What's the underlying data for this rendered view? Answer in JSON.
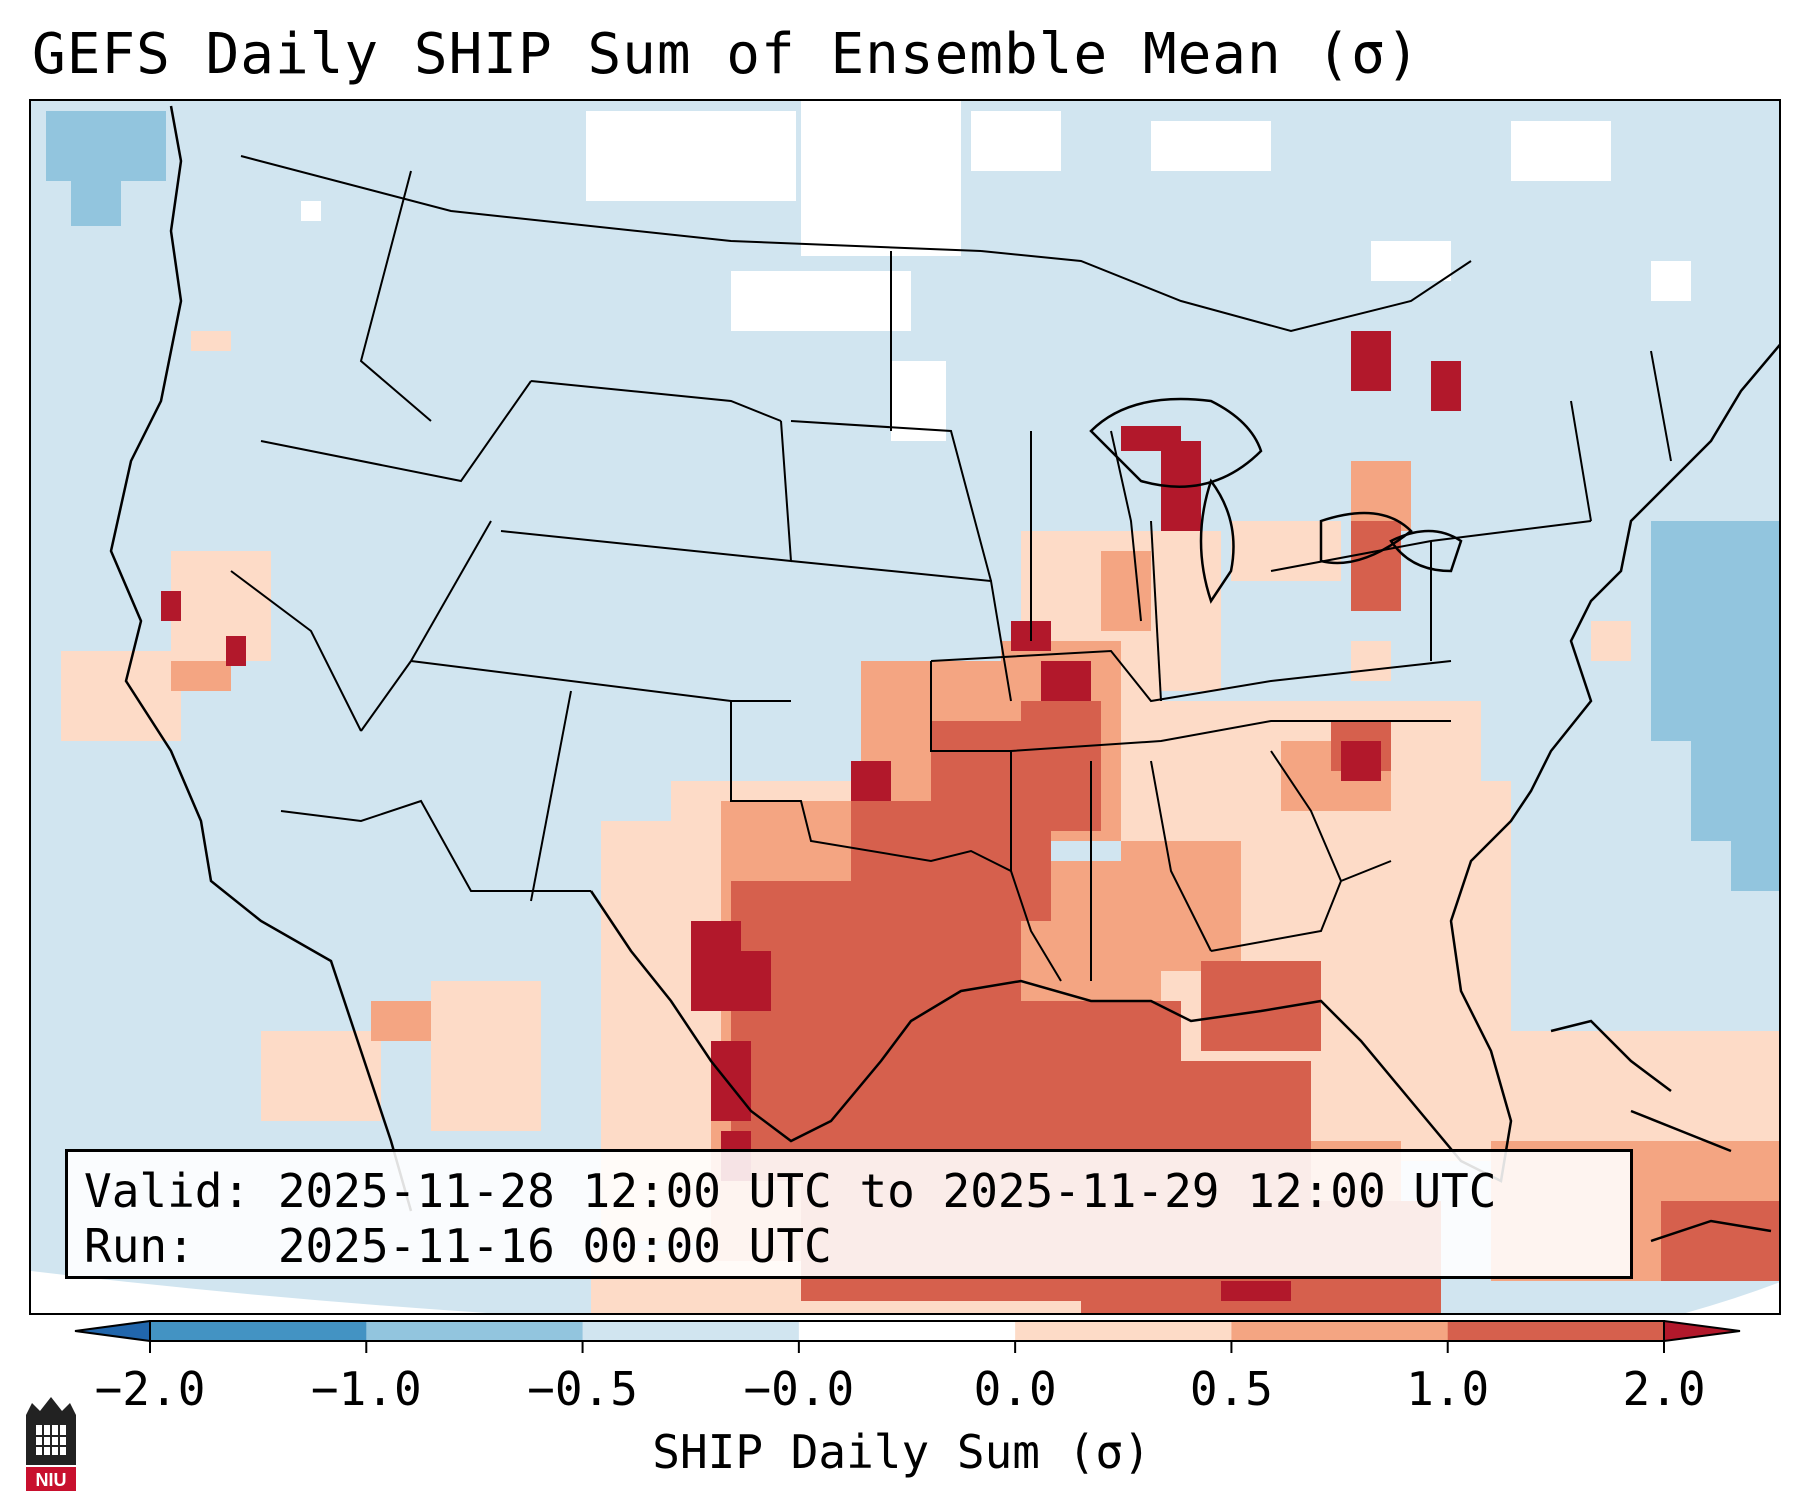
{
  "title": "GEFS Daily SHIP Sum of Ensemble Mean (σ)",
  "valid_text": "Valid: 2025-11-28 12:00 UTC to 2025-11-29 12:00 UTC",
  "run_text": "Run:   2025-11-16 00:00 UTC",
  "colorbar": {
    "label": "SHIP Daily Sum (σ)",
    "ticks": [
      "−2.0",
      "−1.0",
      "−0.5",
      "−0.0",
      "0.0",
      "0.5",
      "1.0",
      "2.0"
    ],
    "bins": [
      {
        "range": "< -2.0",
        "color": "#2166ac"
      },
      {
        "range": "-2.0 to -1.0",
        "color": "#4393c3"
      },
      {
        "range": "-1.0 to -0.5",
        "color": "#92c5de"
      },
      {
        "range": "-0.5 to -0.0",
        "color": "#d1e5f0"
      },
      {
        "range": "-0.0 to 0.0",
        "color": "#ffffff"
      },
      {
        "range": "0.0 to 0.5",
        "color": "#fddbc7"
      },
      {
        "range": "0.5 to 1.0",
        "color": "#f4a582"
      },
      {
        "range": "1.0 to 2.0",
        "color": "#d6604d"
      },
      {
        "range": "> 2.0",
        "color": "#b2182b"
      }
    ]
  },
  "logo_text": "NIU",
  "map": {
    "region": "Contiguous United States",
    "field": "SHIP daily sum anomaly",
    "features": [
      "high values over Texas and southern Plains",
      "elevated values over Gulf of Mexico",
      "near-normal values across western U.S."
    ]
  },
  "colors": {
    "neg3": "#92c5de",
    "neg4": "#d1e5f0",
    "pos1": "#fddbc7",
    "pos2": "#f4a582",
    "pos3": "#d6604d",
    "pos4": "#b2182b",
    "border": "#000000"
  }
}
